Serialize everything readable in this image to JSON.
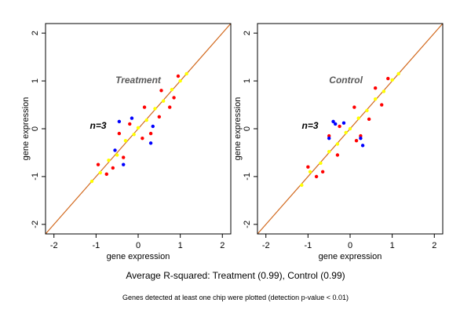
{
  "chart_data": [
    {
      "type": "scatter",
      "title": "Treatment",
      "annotation": "n=3",
      "xlabel": "gene expression",
      "ylabel": "gene expression",
      "xlim": [
        -2.2,
        2.2
      ],
      "ylim": [
        -2.2,
        2.2
      ],
      "xticks": [
        -2,
        -1,
        0,
        1,
        2
      ],
      "yticks": [
        -2,
        -1,
        0,
        1,
        2
      ],
      "grid": false,
      "reference_line": {
        "slope": 1,
        "intercept": 0,
        "color": "#d2691e"
      },
      "point_colors": {
        "agree": "#ffff00",
        "edge": "#ff0000",
        "outlier": "#0000ff"
      },
      "series": [
        {
          "color": "#ffff00",
          "values": [
            [
              -1.1,
              -1.1
            ],
            [
              -0.9,
              -0.92
            ],
            [
              -0.7,
              -0.66
            ],
            [
              -0.5,
              -0.55
            ],
            [
              -0.3,
              -0.25
            ],
            [
              -0.1,
              -0.12
            ],
            [
              0.0,
              0.02
            ],
            [
              0.2,
              0.18
            ],
            [
              0.4,
              0.42
            ],
            [
              0.6,
              0.58
            ],
            [
              0.8,
              0.82
            ],
            [
              1.0,
              1.0
            ],
            [
              1.15,
              1.15
            ]
          ]
        },
        {
          "color": "#ff0000",
          "values": [
            [
              -0.95,
              -0.75
            ],
            [
              -0.6,
              -0.82
            ],
            [
              -0.45,
              -0.1
            ],
            [
              -0.35,
              -0.6
            ],
            [
              0.15,
              0.45
            ],
            [
              0.3,
              -0.1
            ],
            [
              0.55,
              0.8
            ],
            [
              0.75,
              0.45
            ],
            [
              0.95,
              1.1
            ],
            [
              0.85,
              0.65
            ],
            [
              -0.2,
              0.1
            ],
            [
              0.1,
              -0.2
            ],
            [
              0.5,
              0.25
            ],
            [
              -0.75,
              -0.95
            ]
          ]
        },
        {
          "color": "#0000ff",
          "values": [
            [
              -0.55,
              -0.45
            ],
            [
              -0.35,
              -0.75
            ],
            [
              -0.45,
              0.15
            ],
            [
              -0.15,
              0.22
            ],
            [
              0.35,
              0.05
            ],
            [
              0.3,
              -0.3
            ]
          ]
        }
      ]
    },
    {
      "type": "scatter",
      "title": "Control",
      "annotation": "n=3",
      "xlabel": "gene expression",
      "ylabel": "gene expression",
      "xlim": [
        -2.2,
        2.2
      ],
      "ylim": [
        -2.2,
        2.2
      ],
      "xticks": [
        -2,
        -1,
        0,
        1,
        2
      ],
      "yticks": [
        -2,
        -1,
        0,
        1,
        2
      ],
      "grid": false,
      "reference_line": {
        "slope": 1,
        "intercept": 0,
        "color": "#d2691e"
      },
      "point_colors": {
        "agree": "#ffff00",
        "edge": "#ff0000",
        "outlier": "#0000ff"
      },
      "series": [
        {
          "color": "#ffff00",
          "values": [
            [
              -1.15,
              -1.18
            ],
            [
              -0.95,
              -0.9
            ],
            [
              -0.7,
              -0.72
            ],
            [
              -0.5,
              -0.48
            ],
            [
              -0.3,
              -0.32
            ],
            [
              -0.1,
              -0.08
            ],
            [
              0.0,
              0.0
            ],
            [
              0.2,
              0.22
            ],
            [
              0.4,
              0.38
            ],
            [
              0.6,
              0.62
            ],
            [
              0.8,
              0.78
            ],
            [
              1.0,
              1.02
            ],
            [
              1.15,
              1.15
            ]
          ]
        },
        {
          "color": "#ff0000",
          "values": [
            [
              -1.0,
              -0.8
            ],
            [
              -0.65,
              -0.9
            ],
            [
              -0.5,
              -0.15
            ],
            [
              -0.3,
              -0.55
            ],
            [
              0.1,
              0.45
            ],
            [
              0.25,
              -0.15
            ],
            [
              0.6,
              0.85
            ],
            [
              0.75,
              0.5
            ],
            [
              0.9,
              1.05
            ],
            [
              -0.25,
              0.05
            ],
            [
              0.15,
              -0.25
            ],
            [
              0.45,
              0.2
            ],
            [
              -0.8,
              -1.0
            ]
          ]
        },
        {
          "color": "#0000ff",
          "values": [
            [
              -0.5,
              -0.2
            ],
            [
              -0.35,
              0.1
            ],
            [
              -0.4,
              0.15
            ],
            [
              -0.15,
              0.12
            ],
            [
              0.25,
              -0.2
            ],
            [
              0.3,
              -0.35
            ]
          ]
        }
      ]
    }
  ],
  "captions": {
    "main": "Average R-squared: Treatment (0.99), Control (0.99)",
    "note": "Genes detected at least one chip were plotted (detection p-value < 0.01)"
  }
}
